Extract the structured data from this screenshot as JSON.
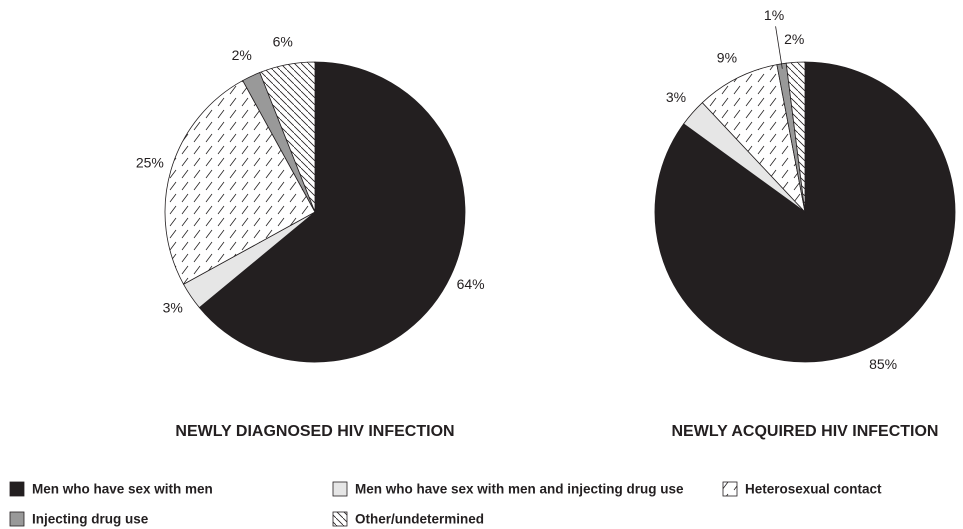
{
  "chart_data": [
    {
      "type": "pie",
      "title": "NEWLY DIAGNOSED HIV INFECTION",
      "categories": [
        "Men who have sex with men",
        "Men who have sex with men and injecting drug use",
        "Heterosexual contact",
        "Injecting drug use",
        "Other/undetermined"
      ],
      "values": [
        64,
        3,
        25,
        2,
        6
      ],
      "value_labels": [
        "64%",
        "3%",
        "25%",
        "2%",
        "6%"
      ],
      "colors": [
        "#231f20",
        "#e6e6e6",
        "#ffffff",
        "#999999",
        "#ffffff"
      ],
      "hatch": [
        "none",
        "none",
        "forward",
        "none",
        "backward"
      ]
    },
    {
      "type": "pie",
      "title": "NEWLY ACQUIRED HIV INFECTION",
      "categories": [
        "Men who have sex with men",
        "Men who have sex with men and injecting drug use",
        "Heterosexual contact",
        "Injecting drug use",
        "Other/undetermined"
      ],
      "values": [
        85,
        3,
        9,
        1,
        2
      ],
      "value_labels": [
        "85%",
        "3%",
        "9%",
        "1%",
        "2%"
      ],
      "colors": [
        "#231f20",
        "#e6e6e6",
        "#ffffff",
        "#999999",
        "#ffffff"
      ],
      "hatch": [
        "none",
        "none",
        "forward",
        "none",
        "backward"
      ]
    }
  ]
}
